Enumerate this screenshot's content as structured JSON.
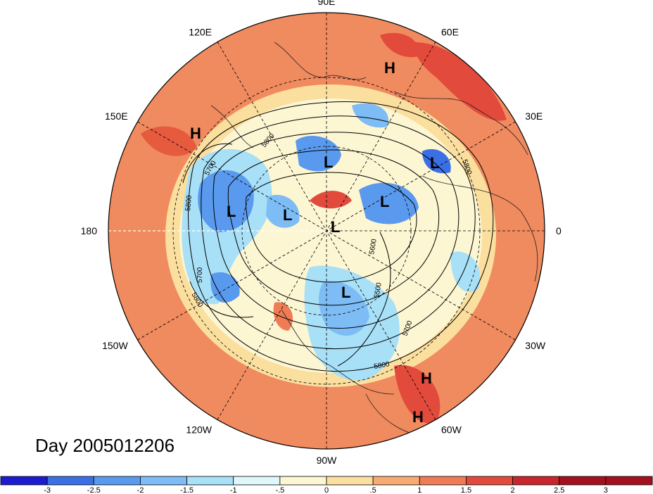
{
  "map": {
    "longitude_labels": [
      {
        "text": "90E",
        "angle_deg": 90
      },
      {
        "text": "60E",
        "angle_deg": 60
      },
      {
        "text": "30E",
        "angle_deg": 30
      },
      {
        "text": "0",
        "angle_deg": 0
      },
      {
        "text": "30W",
        "angle_deg": -30
      },
      {
        "text": "60W",
        "angle_deg": -60
      },
      {
        "text": "90W",
        "angle_deg": -90
      },
      {
        "text": "120W",
        "angle_deg": -120
      },
      {
        "text": "150W",
        "angle_deg": -150
      },
      {
        "text": "180",
        "angle_deg": 180
      },
      {
        "text": "150E",
        "angle_deg": 150
      },
      {
        "text": "120E",
        "angle_deg": 120
      }
    ],
    "pressure_centers": [
      "H",
      "H",
      "L",
      "L",
      "L",
      "L",
      "L",
      "L",
      "L",
      "H",
      "H"
    ],
    "contour_labels": [
      "5700",
      "5800",
      "5700",
      "5800",
      "5800",
      "5600",
      "5500",
      "5700",
      "5800",
      "5800"
    ]
  },
  "day_label": "Day 2005012206",
  "colorbar": {
    "ticks": [
      "-3",
      "-2.5",
      "-2",
      "-1.5",
      "-1",
      "-.5",
      "0",
      ".5",
      "1",
      "1.5",
      "2",
      "2.5",
      "3"
    ],
    "colors": [
      "#1d1bd0",
      "#3b6fe6",
      "#5a9aee",
      "#7dbcf4",
      "#a8e0f7",
      "#dff6fb",
      "#fdf6d3",
      "#fbdf9f",
      "#f7ab72",
      "#f07c56",
      "#e24a3c",
      "#c8252c",
      "#a3111f"
    ]
  }
}
